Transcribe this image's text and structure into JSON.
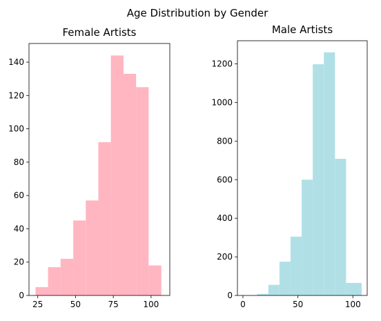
{
  "figure_title": "Age Distribution by Gender",
  "chart_data": [
    {
      "type": "bar",
      "title": "Female Artists",
      "color": "#FFB6C1",
      "xlabel": "",
      "ylabel": "",
      "xlim": [
        19.2,
        112.4
      ],
      "ylim": [
        0,
        151.2
      ],
      "xticks": [
        25,
        50,
        75,
        100
      ],
      "yticks": [
        0,
        20,
        40,
        60,
        80,
        100,
        120,
        140
      ],
      "bins": [
        {
          "x0": 23.5,
          "x1": 31.8,
          "value": 5
        },
        {
          "x0": 31.8,
          "x1": 40.1,
          "value": 17
        },
        {
          "x0": 40.1,
          "x1": 48.5,
          "value": 22
        },
        {
          "x0": 48.5,
          "x1": 56.8,
          "value": 45
        },
        {
          "x0": 56.8,
          "x1": 65.1,
          "value": 57
        },
        {
          "x0": 65.1,
          "x1": 73.4,
          "value": 92
        },
        {
          "x0": 73.4,
          "x1": 81.8,
          "value": 144
        },
        {
          "x0": 81.8,
          "x1": 90.1,
          "value": 133
        },
        {
          "x0": 90.1,
          "x1": 98.4,
          "value": 125
        },
        {
          "x0": 98.4,
          "x1": 106.8,
          "value": 18
        }
      ],
      "grid": false
    },
    {
      "type": "bar",
      "title": "Male Artists",
      "color": "#B0E0E6",
      "xlabel": "",
      "ylabel": "",
      "xlim": [
        -5,
        113
      ],
      "ylim": [
        0,
        1320
      ],
      "xticks": [
        0,
        50,
        100
      ],
      "yticks": [
        0,
        200,
        400,
        600,
        800,
        1000,
        1200
      ],
      "bins": [
        {
          "x0": 0,
          "x1": 13,
          "value": 0
        },
        {
          "x0": 13,
          "x1": 23.1,
          "value": 8
        },
        {
          "x0": 23.1,
          "x1": 33.2,
          "value": 55
        },
        {
          "x0": 33.2,
          "x1": 43.3,
          "value": 175
        },
        {
          "x0": 43.3,
          "x1": 53.4,
          "value": 305
        },
        {
          "x0": 53.4,
          "x1": 63.5,
          "value": 600
        },
        {
          "x0": 63.5,
          "x1": 73.6,
          "value": 1198
        },
        {
          "x0": 73.6,
          "x1": 83.7,
          "value": 1260
        },
        {
          "x0": 83.7,
          "x1": 93.8,
          "value": 708
        },
        {
          "x0": 93.8,
          "x1": 103.9,
          "value": 65
        },
        {
          "x0": 103.9,
          "x1": 108,
          "value": 65
        }
      ],
      "grid": false
    }
  ]
}
